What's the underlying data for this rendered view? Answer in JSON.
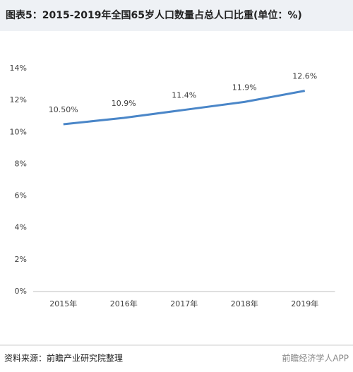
{
  "chart_data": {
    "type": "line",
    "title": "图表5：2015-2019年全国65岁人口数量占总人口比重(单位：%)",
    "categories": [
      "2015年",
      "2016年",
      "2017年",
      "2018年",
      "2019年"
    ],
    "values": [
      10.5,
      10.9,
      11.4,
      11.9,
      12.6
    ],
    "value_labels": [
      "10.50%",
      "10.9%",
      "11.4%",
      "11.9%",
      "12.6%"
    ],
    "color": "#4a86c8",
    "ylim": [
      0,
      14
    ],
    "yticks": [
      {
        "value": 0,
        "label": "0%"
      },
      {
        "value": 2,
        "label": "2%"
      },
      {
        "value": 4,
        "label": "4%"
      },
      {
        "value": 6,
        "label": "6%"
      },
      {
        "value": 8,
        "label": "8%"
      },
      {
        "value": 10,
        "label": "10%"
      },
      {
        "value": 12,
        "label": "12%"
      },
      {
        "value": 14,
        "label": "14%"
      }
    ],
    "grid": false,
    "source": "资料来源：前瞻产业研究院整理",
    "brand": "前瞻经济学人APP"
  }
}
